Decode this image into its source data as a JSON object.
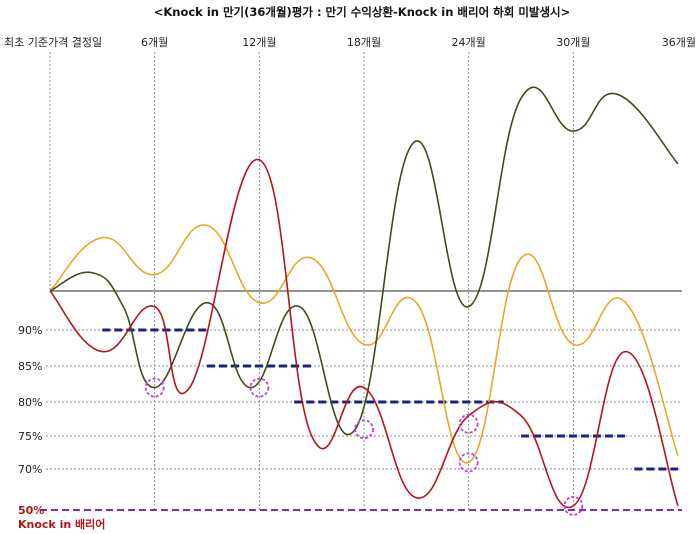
{
  "title": "<Knock in 만기(36개월)평가 : 만기 수익상환-Knock in 배리어 하회 미발생시>",
  "chart_data": {
    "type": "line",
    "periods": [
      "최초 기준가격 결정일",
      "6개월",
      "12개월",
      "18개월",
      "24개월",
      "30개월",
      "36개월"
    ],
    "period_months": [
      0,
      6,
      12,
      18,
      24,
      30,
      36
    ],
    "y_levels": [
      {
        "label": "90%",
        "value": 90
      },
      {
        "label": "85%",
        "value": 85
      },
      {
        "label": "80%",
        "value": 80
      },
      {
        "label": "75%",
        "value": 75
      },
      {
        "label": "70%",
        "value": 70
      },
      {
        "label": "50%",
        "value": 50
      }
    ],
    "barrier": {
      "label": "50%",
      "name": "Knock in 배리어",
      "value": 50,
      "color": "#7b2fbf"
    },
    "redemption_levels": [
      {
        "from": 3,
        "to": 9,
        "value": 90
      },
      {
        "from": 9,
        "to": 15,
        "value": 85
      },
      {
        "from": 14,
        "to": 26,
        "value": 80
      },
      {
        "from": 27,
        "to": 33,
        "value": 75
      },
      {
        "from": 33.5,
        "to": 36,
        "value": 70
      }
    ],
    "redemption_color": "#1a237e",
    "base_value": 100,
    "evaluation_markers": [
      {
        "month": 6,
        "value": 82
      },
      {
        "month": 12,
        "value": 82
      },
      {
        "month": 18,
        "value": 76
      },
      {
        "month": 24,
        "value": 76.8
      },
      {
        "month": 24,
        "value": 71
      },
      {
        "month": 30,
        "value": 52
      }
    ],
    "marker_color": "#c040d8",
    "series": [
      {
        "color": "#e8a825",
        "points": [
          [
            0,
            100
          ],
          [
            3,
            113
          ],
          [
            6,
            104
          ],
          [
            9,
            116
          ],
          [
            12,
            97
          ],
          [
            15,
            108
          ],
          [
            18,
            88
          ],
          [
            21,
            97
          ],
          [
            24,
            71
          ],
          [
            27,
            108
          ],
          [
            30,
            88
          ],
          [
            33,
            97
          ],
          [
            36,
            72
          ]
        ]
      },
      {
        "color": "#454a1a",
        "points": [
          [
            0,
            100
          ],
          [
            2.4,
            104.5
          ],
          [
            4.2,
            96
          ],
          [
            6,
            82
          ],
          [
            9,
            97
          ],
          [
            11.5,
            82
          ],
          [
            14.3,
            96
          ],
          [
            17.5,
            76
          ],
          [
            20.8,
            136
          ],
          [
            24,
            96
          ],
          [
            27,
            147
          ],
          [
            30,
            139
          ],
          [
            32.5,
            148
          ],
          [
            36,
            131
          ]
        ]
      },
      {
        "color": "#b3161b",
        "points": [
          [
            0,
            100
          ],
          [
            3,
            87
          ],
          [
            6,
            96
          ],
          [
            8,
            82
          ],
          [
            12,
            132
          ],
          [
            15,
            75
          ],
          [
            18,
            82
          ],
          [
            21,
            56
          ],
          [
            24,
            78
          ],
          [
            27,
            78
          ],
          [
            30,
            52
          ],
          [
            33,
            87
          ],
          [
            36,
            52
          ]
        ]
      }
    ]
  }
}
